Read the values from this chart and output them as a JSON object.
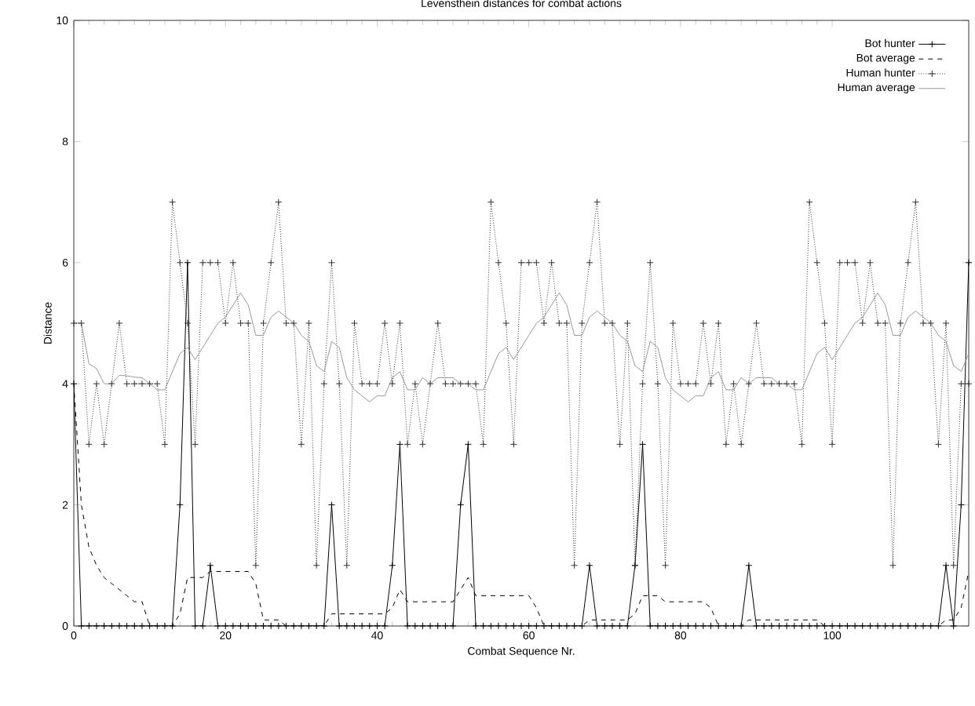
{
  "chart_data": {
    "type": "line",
    "title": "Levensthein distances for combat actions",
    "xlabel": "Combat Sequence Nr.",
    "ylabel": "Distance",
    "x": [
      0,
      1,
      2,
      3,
      4,
      5,
      6,
      7,
      8,
      9,
      10,
      11,
      12,
      13,
      14,
      15,
      16,
      17,
      18,
      19,
      20,
      21,
      22,
      23,
      24,
      25,
      26,
      27,
      28,
      29,
      30,
      31,
      32,
      33,
      34,
      35,
      36,
      37,
      38,
      39,
      40,
      41,
      42,
      43,
      44,
      45,
      46,
      47,
      48,
      49,
      50,
      51,
      52,
      53,
      54,
      55,
      56,
      57,
      58,
      59,
      60,
      61,
      62,
      63,
      64,
      65,
      66,
      67,
      68,
      69,
      70,
      71,
      72,
      73,
      74,
      75,
      76,
      77,
      78,
      79,
      80,
      81,
      82,
      83,
      84,
      85,
      86,
      87,
      88,
      89,
      90,
      91,
      92,
      93,
      94,
      95,
      96,
      97,
      98,
      99,
      100,
      101,
      102,
      103,
      104,
      105,
      106,
      107,
      108,
      109,
      110,
      111,
      112,
      113,
      114,
      115,
      116,
      117,
      118
    ],
    "xlim": [
      0,
      118
    ],
    "xticks": [
      0,
      20,
      40,
      60,
      80,
      100
    ],
    "ylim": [
      0,
      10
    ],
    "yticks": [
      0,
      2,
      4,
      6,
      8,
      10
    ],
    "legend": "top right",
    "series": [
      {
        "name": "Bot hunter",
        "color": "#000000",
        "line_style": "solid",
        "marker": "cross",
        "values": [
          4,
          0,
          0,
          0,
          0,
          0,
          0,
          0,
          0,
          0,
          0,
          0,
          0,
          0,
          2,
          6,
          0,
          0,
          1,
          0,
          0,
          0,
          0,
          0,
          0,
          0,
          0,
          0,
          0,
          0,
          0,
          0,
          0,
          0,
          2,
          0,
          0,
          0,
          0,
          0,
          0,
          0,
          1,
          3,
          0,
          0,
          0,
          0,
          0,
          0,
          0,
          2,
          3,
          0,
          0,
          0,
          0,
          0,
          0,
          0,
          0,
          0,
          0,
          0,
          0,
          0,
          0,
          0,
          1,
          0,
          0,
          0,
          0,
          0,
          1,
          3,
          0,
          0,
          0,
          0,
          0,
          0,
          0,
          0,
          0,
          0,
          0,
          0,
          0,
          1,
          0,
          0,
          0,
          0,
          0,
          0,
          0,
          0,
          0,
          0,
          0,
          0,
          0,
          0,
          0,
          0,
          0,
          0,
          0,
          0,
          0,
          0,
          0,
          0,
          0,
          1,
          0,
          2,
          6
        ]
      },
      {
        "name": "Bot average",
        "color": "#000000",
        "line_style": "dashed",
        "marker": "none",
        "values": [
          4,
          2,
          1.3,
          1,
          0.8,
          0.7,
          0.6,
          0.5,
          0.4,
          0.4,
          0,
          0,
          0,
          0,
          0.2,
          0.8,
          0.8,
          0.8,
          0.9,
          0.9,
          0.9,
          0.9,
          0.9,
          0.9,
          0.7,
          0.1,
          0.1,
          0.1,
          0,
          0,
          0,
          0,
          0,
          0,
          0.2,
          0.2,
          0.2,
          0.2,
          0.2,
          0.2,
          0.2,
          0.2,
          0.3,
          0.6,
          0.4,
          0.4,
          0.4,
          0.4,
          0.4,
          0.4,
          0.4,
          0.6,
          0.8,
          0.5,
          0.5,
          0.5,
          0.5,
          0.5,
          0.5,
          0.5,
          0.5,
          0.3,
          0,
          0,
          0,
          0,
          0,
          0,
          0.1,
          0.1,
          0.1,
          0.1,
          0.1,
          0.1,
          0.2,
          0.5,
          0.5,
          0.5,
          0.4,
          0.4,
          0.4,
          0.4,
          0.4,
          0.4,
          0.3,
          0,
          0,
          0,
          0,
          0.1,
          0.1,
          0.1,
          0.1,
          0.1,
          0.1,
          0.1,
          0.1,
          0.1,
          0.1,
          0,
          0,
          0,
          0,
          0,
          0,
          0,
          0,
          0,
          0,
          0,
          0,
          0,
          0,
          0,
          0,
          0.1,
          0.1,
          0.3,
          0.9
        ]
      },
      {
        "name": "Human hunter",
        "color": "#333333",
        "line_style": "dotted",
        "marker": "cross",
        "values": [
          5,
          5,
          3,
          4,
          3,
          4,
          5,
          4,
          4,
          4,
          4,
          4,
          3,
          7,
          6,
          5,
          3,
          6,
          6,
          6,
          5,
          6,
          5,
          5,
          1,
          5,
          6,
          7,
          5,
          5,
          3,
          5,
          1,
          4,
          6,
          4,
          1,
          5,
          4,
          4,
          4,
          5,
          4,
          5,
          3,
          4,
          3,
          4,
          5,
          4,
          4,
          4,
          4,
          4,
          3,
          7,
          6,
          5,
          3,
          6,
          6,
          6,
          5,
          6,
          5,
          5,
          1,
          5,
          6,
          7,
          5,
          5,
          3,
          5,
          1,
          4,
          6,
          4,
          1,
          5,
          4,
          4,
          4,
          5,
          4,
          5,
          3,
          4,
          3,
          4,
          5,
          4,
          4,
          4,
          4,
          4,
          3,
          7,
          6,
          5,
          3,
          6,
          6,
          6,
          5,
          6,
          5,
          5,
          1,
          5,
          6,
          7,
          5,
          5,
          3,
          5,
          1,
          4,
          4
        ]
      },
      {
        "name": "Human average",
        "color": "#999999",
        "line_style": "solid",
        "marker": "none",
        "values": [
          5,
          5,
          4.33,
          4.25,
          4,
          4,
          4.14,
          4.13,
          4.11,
          4.1,
          4,
          3.9,
          3.9,
          4.2,
          4.5,
          4.6,
          4.4,
          4.6,
          4.8,
          5,
          5.1,
          5.3,
          5.5,
          5.3,
          4.8,
          4.8,
          5.1,
          5.2,
          5.1,
          5,
          4.8,
          4.7,
          4.3,
          4.2,
          4.7,
          4.6,
          4.1,
          3.9,
          3.8,
          3.7,
          3.8,
          3.8,
          4.1,
          4.2,
          3.9,
          3.9,
          4.1,
          4,
          4.1,
          4.1,
          4.1,
          4,
          4,
          3.9,
          3.9,
          4.2,
          4.5,
          4.6,
          4.4,
          4.6,
          4.8,
          5,
          5.1,
          5.3,
          5.5,
          5.3,
          4.8,
          4.8,
          5.1,
          5.2,
          5.1,
          5,
          4.8,
          4.7,
          4.3,
          4.2,
          4.7,
          4.6,
          4.1,
          3.9,
          3.8,
          3.7,
          3.8,
          3.8,
          4.1,
          4.2,
          3.9,
          3.9,
          4.1,
          4,
          4.1,
          4.1,
          4.1,
          4,
          4,
          3.9,
          3.9,
          4.2,
          4.5,
          4.6,
          4.4,
          4.6,
          4.8,
          5,
          5.1,
          5.3,
          5.5,
          5.3,
          4.8,
          4.8,
          5.1,
          5.2,
          5.1,
          5,
          4.8,
          4.7,
          4.3,
          4.2,
          4.5
        ]
      }
    ]
  }
}
